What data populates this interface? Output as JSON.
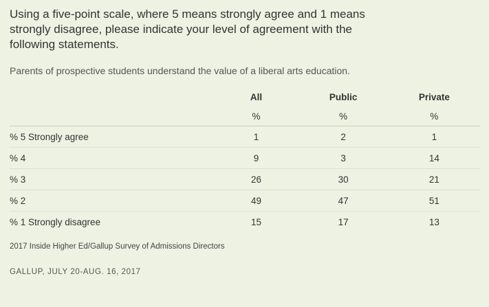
{
  "question": "Using a five-point scale, where 5 means strongly agree and 1 means strongly disagree, please indicate your level of agreement with the following statements.",
  "statement": "Parents of prospective students understand the value of a liberal arts education.",
  "table": {
    "columns": [
      "All",
      "Public",
      "Private"
    ],
    "units": [
      "%",
      "%",
      "%"
    ],
    "rows": [
      {
        "label": "% 5 Strongly agree",
        "values": [
          "1",
          "2",
          "1"
        ]
      },
      {
        "label": "% 4",
        "values": [
          "9",
          "3",
          "14"
        ]
      },
      {
        "label": "% 3",
        "values": [
          "26",
          "30",
          "21"
        ]
      },
      {
        "label": "% 2",
        "values": [
          "49",
          "47",
          "51"
        ]
      },
      {
        "label": "% 1 Strongly disagree",
        "values": [
          "15",
          "17",
          "13"
        ]
      }
    ]
  },
  "source": "2017 Inside Higher Ed/Gallup Survey of Admissions Directors",
  "credit": "GALLUP, JULY 20-AUG. 16, 2017"
}
